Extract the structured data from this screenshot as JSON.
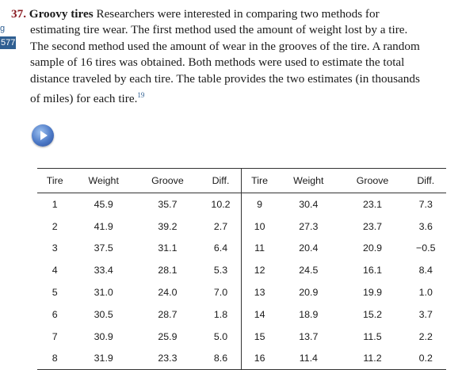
{
  "margin": {
    "top_label": "g",
    "tab_label": "577"
  },
  "problem": {
    "number": "37.",
    "title": "Groovy tires",
    "line1_rest": "Researchers were interested in comparing two methods for",
    "line2": "estimating tire wear. The first method used the amount of weight lost by a tire.",
    "line3": "The second method used the amount of wear in the grooves of the tire. A random",
    "line4": "sample of 16 tires was obtained. Both methods were used to estimate the total",
    "line5": "distance traveled by each tire. The table provides the two estimates (in thousands",
    "line6": "of miles) for each tire.",
    "footnote": "19"
  },
  "play_button": {
    "icon": "play-icon"
  },
  "table": {
    "headers": [
      "Tire",
      "Weight",
      "Groove",
      "Diff.",
      "Tire",
      "Weight",
      "Groove",
      "Diff."
    ],
    "rows": [
      [
        "1",
        "45.9",
        "35.7",
        "10.2",
        "9",
        "30.4",
        "23.1",
        "7.3"
      ],
      [
        "2",
        "41.9",
        "39.2",
        "2.7",
        "10",
        "27.3",
        "23.7",
        "3.6"
      ],
      [
        "3",
        "37.5",
        "31.1",
        "6.4",
        "11",
        "20.4",
        "20.9",
        "−0.5"
      ],
      [
        "4",
        "33.4",
        "28.1",
        "5.3",
        "12",
        "24.5",
        "16.1",
        "8.4"
      ],
      [
        "5",
        "31.0",
        "24.0",
        "7.0",
        "13",
        "20.9",
        "19.9",
        "1.0"
      ],
      [
        "6",
        "30.5",
        "28.7",
        "1.8",
        "14",
        "18.9",
        "15.2",
        "3.7"
      ],
      [
        "7",
        "30.9",
        "25.9",
        "5.0",
        "15",
        "13.7",
        "11.5",
        "2.2"
      ],
      [
        "8",
        "31.9",
        "23.3",
        "8.6",
        "16",
        "11.4",
        "11.2",
        "0.2"
      ]
    ]
  }
}
